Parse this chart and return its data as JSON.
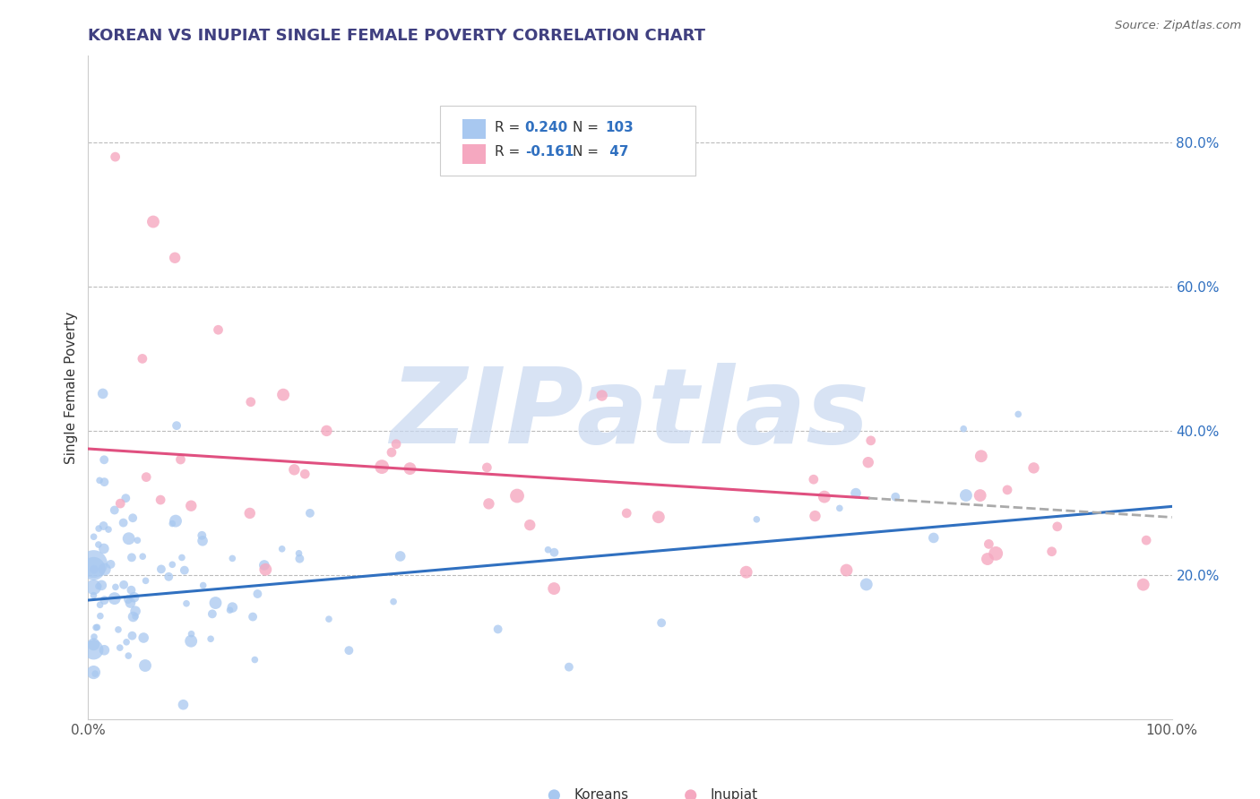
{
  "title": "KOREAN VS INUPIAT SINGLE FEMALE POVERTY CORRELATION CHART",
  "source": "Source: ZipAtlas.com",
  "ylabel": "Single Female Poverty",
  "xlim": [
    0.0,
    1.0
  ],
  "ylim": [
    0.0,
    0.92
  ],
  "ytick_vals": [
    0.2,
    0.4,
    0.6,
    0.8
  ],
  "ytick_labels": [
    "20.0%",
    "40.0%",
    "60.0%",
    "80.0%"
  ],
  "xtick_vals": [
    0.0,
    1.0
  ],
  "xtick_labels": [
    "0.0%",
    "100.0%"
  ],
  "korean_color": "#a8c8f0",
  "inupiat_color": "#f5a8c0",
  "korean_line_color": "#3070c0",
  "inupiat_line_color": "#e05080",
  "dash_line_color": "#aaaaaa",
  "korean_R": 0.24,
  "korean_N": 103,
  "inupiat_R": -0.161,
  "inupiat_N": 47,
  "watermark": "ZIPatlas",
  "watermark_color": "#c8d8f0",
  "background_color": "#ffffff",
  "grid_color": "#bbbbbb",
  "title_color": "#404080",
  "axis_label_color": "#3070c0",
  "legend_R_color": "#3070c0",
  "legend_N_color": "#3070c0",
  "legend_text_color": "#333333",
  "source_color": "#666666",
  "ylabel_color": "#333333"
}
